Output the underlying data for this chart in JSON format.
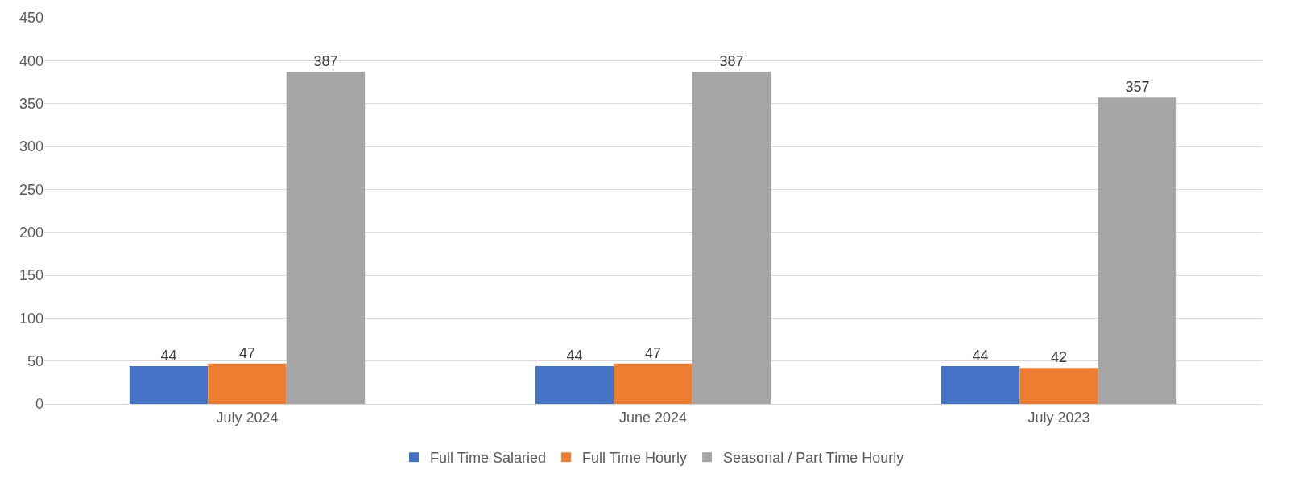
{
  "chart_data": {
    "type": "bar",
    "categories": [
      "July 2024",
      "June 2024",
      "July 2023"
    ],
    "series": [
      {
        "name": "Full Time Salaried",
        "color": "#4472c4",
        "values": [
          44,
          44,
          44
        ]
      },
      {
        "name": "Full Time Hourly",
        "color": "#ed7d31",
        "values": [
          47,
          47,
          42
        ]
      },
      {
        "name": "Seasonal / Part Time Hourly",
        "color": "#a5a5a5",
        "values": [
          387,
          387,
          357
        ]
      }
    ],
    "ylim": [
      0,
      450
    ],
    "yticks": [
      0,
      50,
      100,
      150,
      200,
      250,
      300,
      350,
      400,
      450
    ],
    "grid": "y",
    "legend": "bottom",
    "data_labels": true
  }
}
